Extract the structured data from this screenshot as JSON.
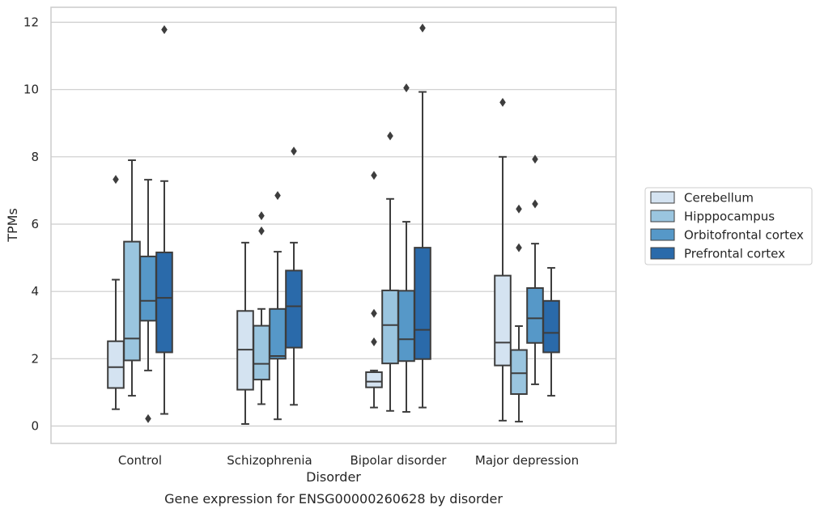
{
  "caption": "Gene expression for ENSG00000260628 by disorder",
  "chart_data": {
    "type": "box",
    "title": "",
    "xlabel": "Disorder",
    "ylabel": "TPMs",
    "ylim": [
      -0.5,
      12.4
    ],
    "yticks": [
      0,
      2,
      4,
      6,
      8,
      10,
      12
    ],
    "grid": "horizontal",
    "legend_position": "right",
    "categories": [
      "Control",
      "Schizophrenia",
      "Bipolar disorder",
      "Major depression"
    ],
    "series": [
      {
        "name": "Cerebellum",
        "color": "#d4e3f1",
        "boxes": [
          {
            "whislo": 0.5,
            "q1": 1.13,
            "med": 1.75,
            "q3": 2.52,
            "whishi": 4.35,
            "fliers": [
              7.33
            ]
          },
          {
            "whislo": 0.06,
            "q1": 1.08,
            "med": 2.27,
            "q3": 3.42,
            "whishi": 5.45,
            "fliers": []
          },
          {
            "whislo": 0.55,
            "q1": 1.15,
            "med": 1.32,
            "q3": 1.6,
            "whishi": 1.65,
            "fliers": [
              3.35,
              2.5,
              7.45
            ]
          },
          {
            "whislo": 0.16,
            "q1": 1.8,
            "med": 2.48,
            "q3": 4.47,
            "whishi": 8.0,
            "fliers": [
              9.62
            ]
          }
        ]
      },
      {
        "name": "Hipppocampus",
        "color": "#9ac5df",
        "boxes": [
          {
            "whislo": 0.9,
            "q1": 1.95,
            "med": 2.6,
            "q3": 5.48,
            "whishi": 7.9,
            "fliers": []
          },
          {
            "whislo": 0.65,
            "q1": 1.38,
            "med": 1.85,
            "q3": 2.98,
            "whishi": 3.48,
            "fliers": [
              5.8,
              6.25
            ]
          },
          {
            "whislo": 0.45,
            "q1": 1.86,
            "med": 3.0,
            "q3": 4.03,
            "whishi": 6.75,
            "fliers": [
              8.62
            ]
          },
          {
            "whislo": 0.13,
            "q1": 0.95,
            "med": 1.57,
            "q3": 2.26,
            "whishi": 2.97,
            "fliers": [
              5.3,
              6.45
            ]
          }
        ]
      },
      {
        "name": "Orbitofrontal cortex",
        "color": "#5698c8",
        "boxes": [
          {
            "whislo": 1.65,
            "q1": 3.13,
            "med": 3.72,
            "q3": 5.04,
            "whishi": 7.32,
            "fliers": [
              0.22
            ]
          },
          {
            "whislo": 0.2,
            "q1": 2.0,
            "med": 2.08,
            "q3": 3.48,
            "whishi": 5.18,
            "fliers": [
              6.85
            ]
          },
          {
            "whislo": 0.42,
            "q1": 1.93,
            "med": 2.58,
            "q3": 4.02,
            "whishi": 6.07,
            "fliers": [
              10.05
            ]
          },
          {
            "whislo": 1.24,
            "q1": 2.47,
            "med": 3.2,
            "q3": 4.1,
            "whishi": 5.42,
            "fliers": [
              6.6,
              7.93
            ]
          }
        ]
      },
      {
        "name": "Prefrontal cortex",
        "color": "#2a6aaa",
        "boxes": [
          {
            "whislo": 0.36,
            "q1": 2.19,
            "med": 3.81,
            "q3": 5.16,
            "whishi": 7.28,
            "fliers": [
              11.78
            ]
          },
          {
            "whislo": 0.63,
            "q1": 2.33,
            "med": 3.56,
            "q3": 4.62,
            "whishi": 5.45,
            "fliers": [
              8.17
            ]
          },
          {
            "whislo": 0.55,
            "q1": 1.99,
            "med": 2.86,
            "q3": 5.3,
            "whishi": 9.93,
            "fliers": [
              11.83
            ]
          },
          {
            "whislo": 0.9,
            "q1": 2.19,
            "med": 2.77,
            "q3": 3.72,
            "whishi": 4.7,
            "fliers": []
          }
        ]
      }
    ]
  }
}
